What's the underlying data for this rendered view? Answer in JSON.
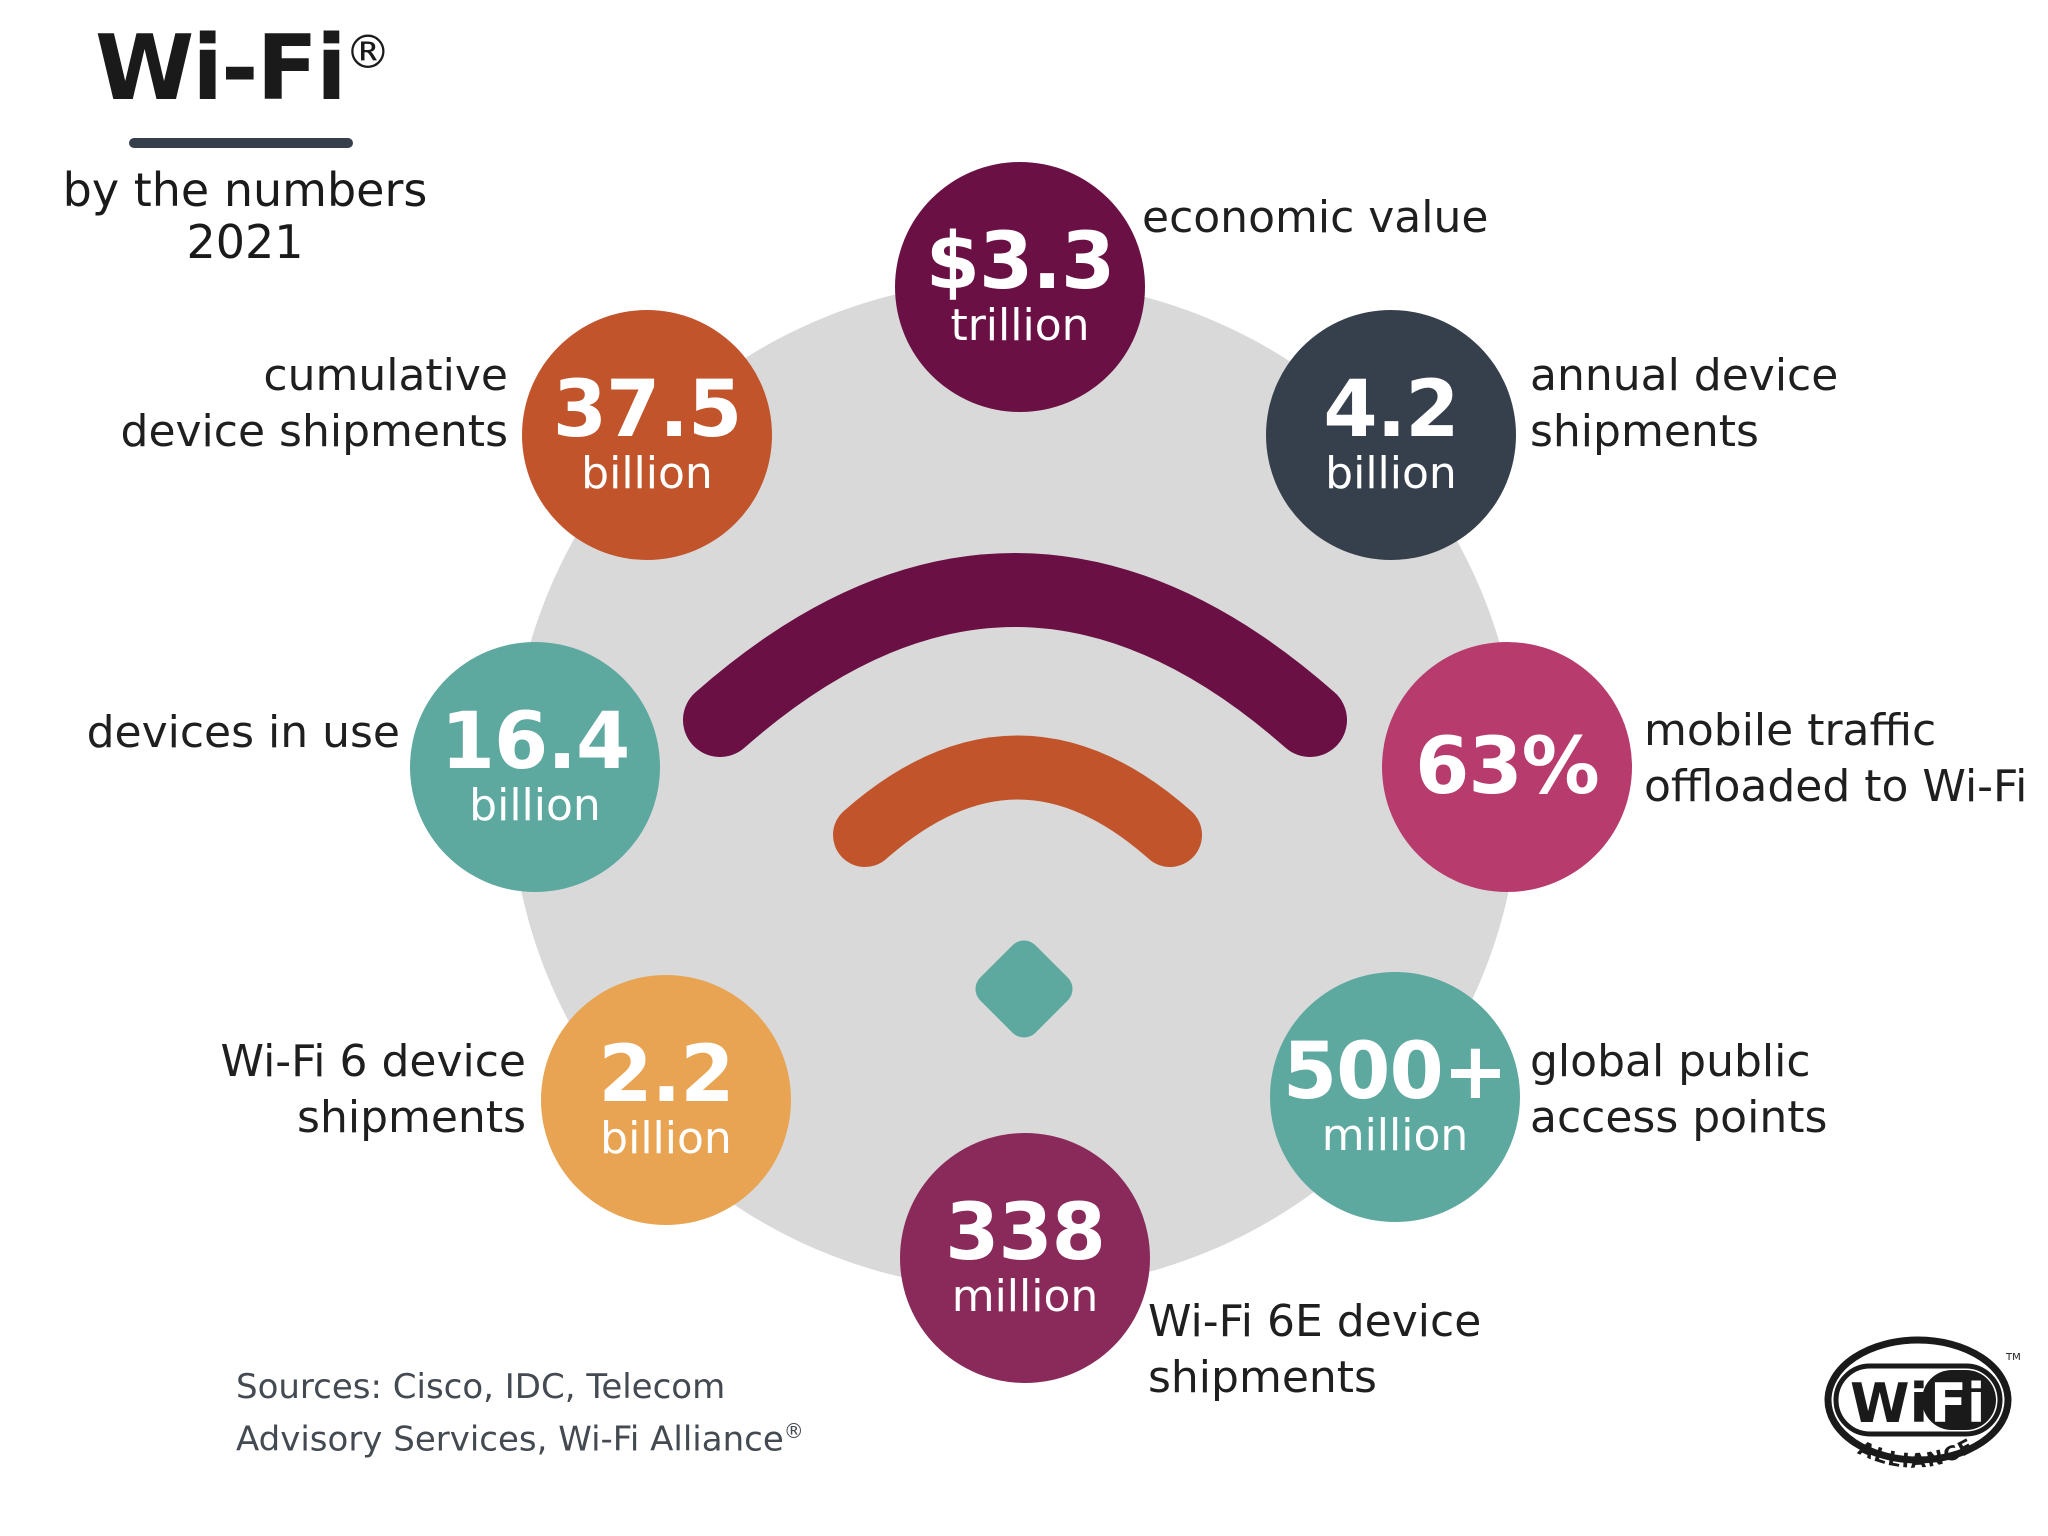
{
  "header": {
    "title": "Wi-Fi",
    "title_mark": "®",
    "subtitle_line1": "by the numbers",
    "subtitle_line2": "2021"
  },
  "colors": {
    "plum": "#6a1045",
    "burnt_orange": "#c1542b",
    "slate": "#36404c",
    "teal": "#5da89f",
    "magenta": "#b73b6c",
    "orange_light": "#e8a452",
    "wine": "#8a2a5a",
    "background_circle": "#d9d9d9"
  },
  "stats": [
    {
      "id": "economic",
      "value": "$3.3",
      "unit": "trillion",
      "label": [
        "economic value"
      ]
    },
    {
      "id": "annual",
      "value": "4.2",
      "unit": "billion",
      "label": [
        "annual device",
        "shipments"
      ]
    },
    {
      "id": "mobile",
      "value": "63%",
      "unit": "",
      "label": [
        "mobile traffic",
        "offloaded to Wi-Fi"
      ]
    },
    {
      "id": "public",
      "value": "500+",
      "unit": "million",
      "label": [
        "global public",
        "access points"
      ]
    },
    {
      "id": "wifi6e",
      "value": "338",
      "unit": "million",
      "label": [
        "Wi-Fi 6E device",
        "shipments"
      ]
    },
    {
      "id": "wifi6",
      "value": "2.2",
      "unit": "billion",
      "label": [
        "Wi-Fi 6 device",
        "shipments"
      ]
    },
    {
      "id": "inuse",
      "value": "16.4",
      "unit": "billion",
      "label": [
        "devices in use"
      ]
    },
    {
      "id": "cumulative",
      "value": "37.5",
      "unit": "billion",
      "label": [
        "cumulative",
        "device shipments"
      ]
    }
  ],
  "sources": {
    "line1": "Sources: Cisco, IDC, Telecom",
    "line2": "Advisory Services, Wi-Fi Alliance",
    "mark": "®"
  },
  "logo": {
    "text": "WiFi",
    "sub": "ALLIANCE",
    "tm": "™"
  }
}
